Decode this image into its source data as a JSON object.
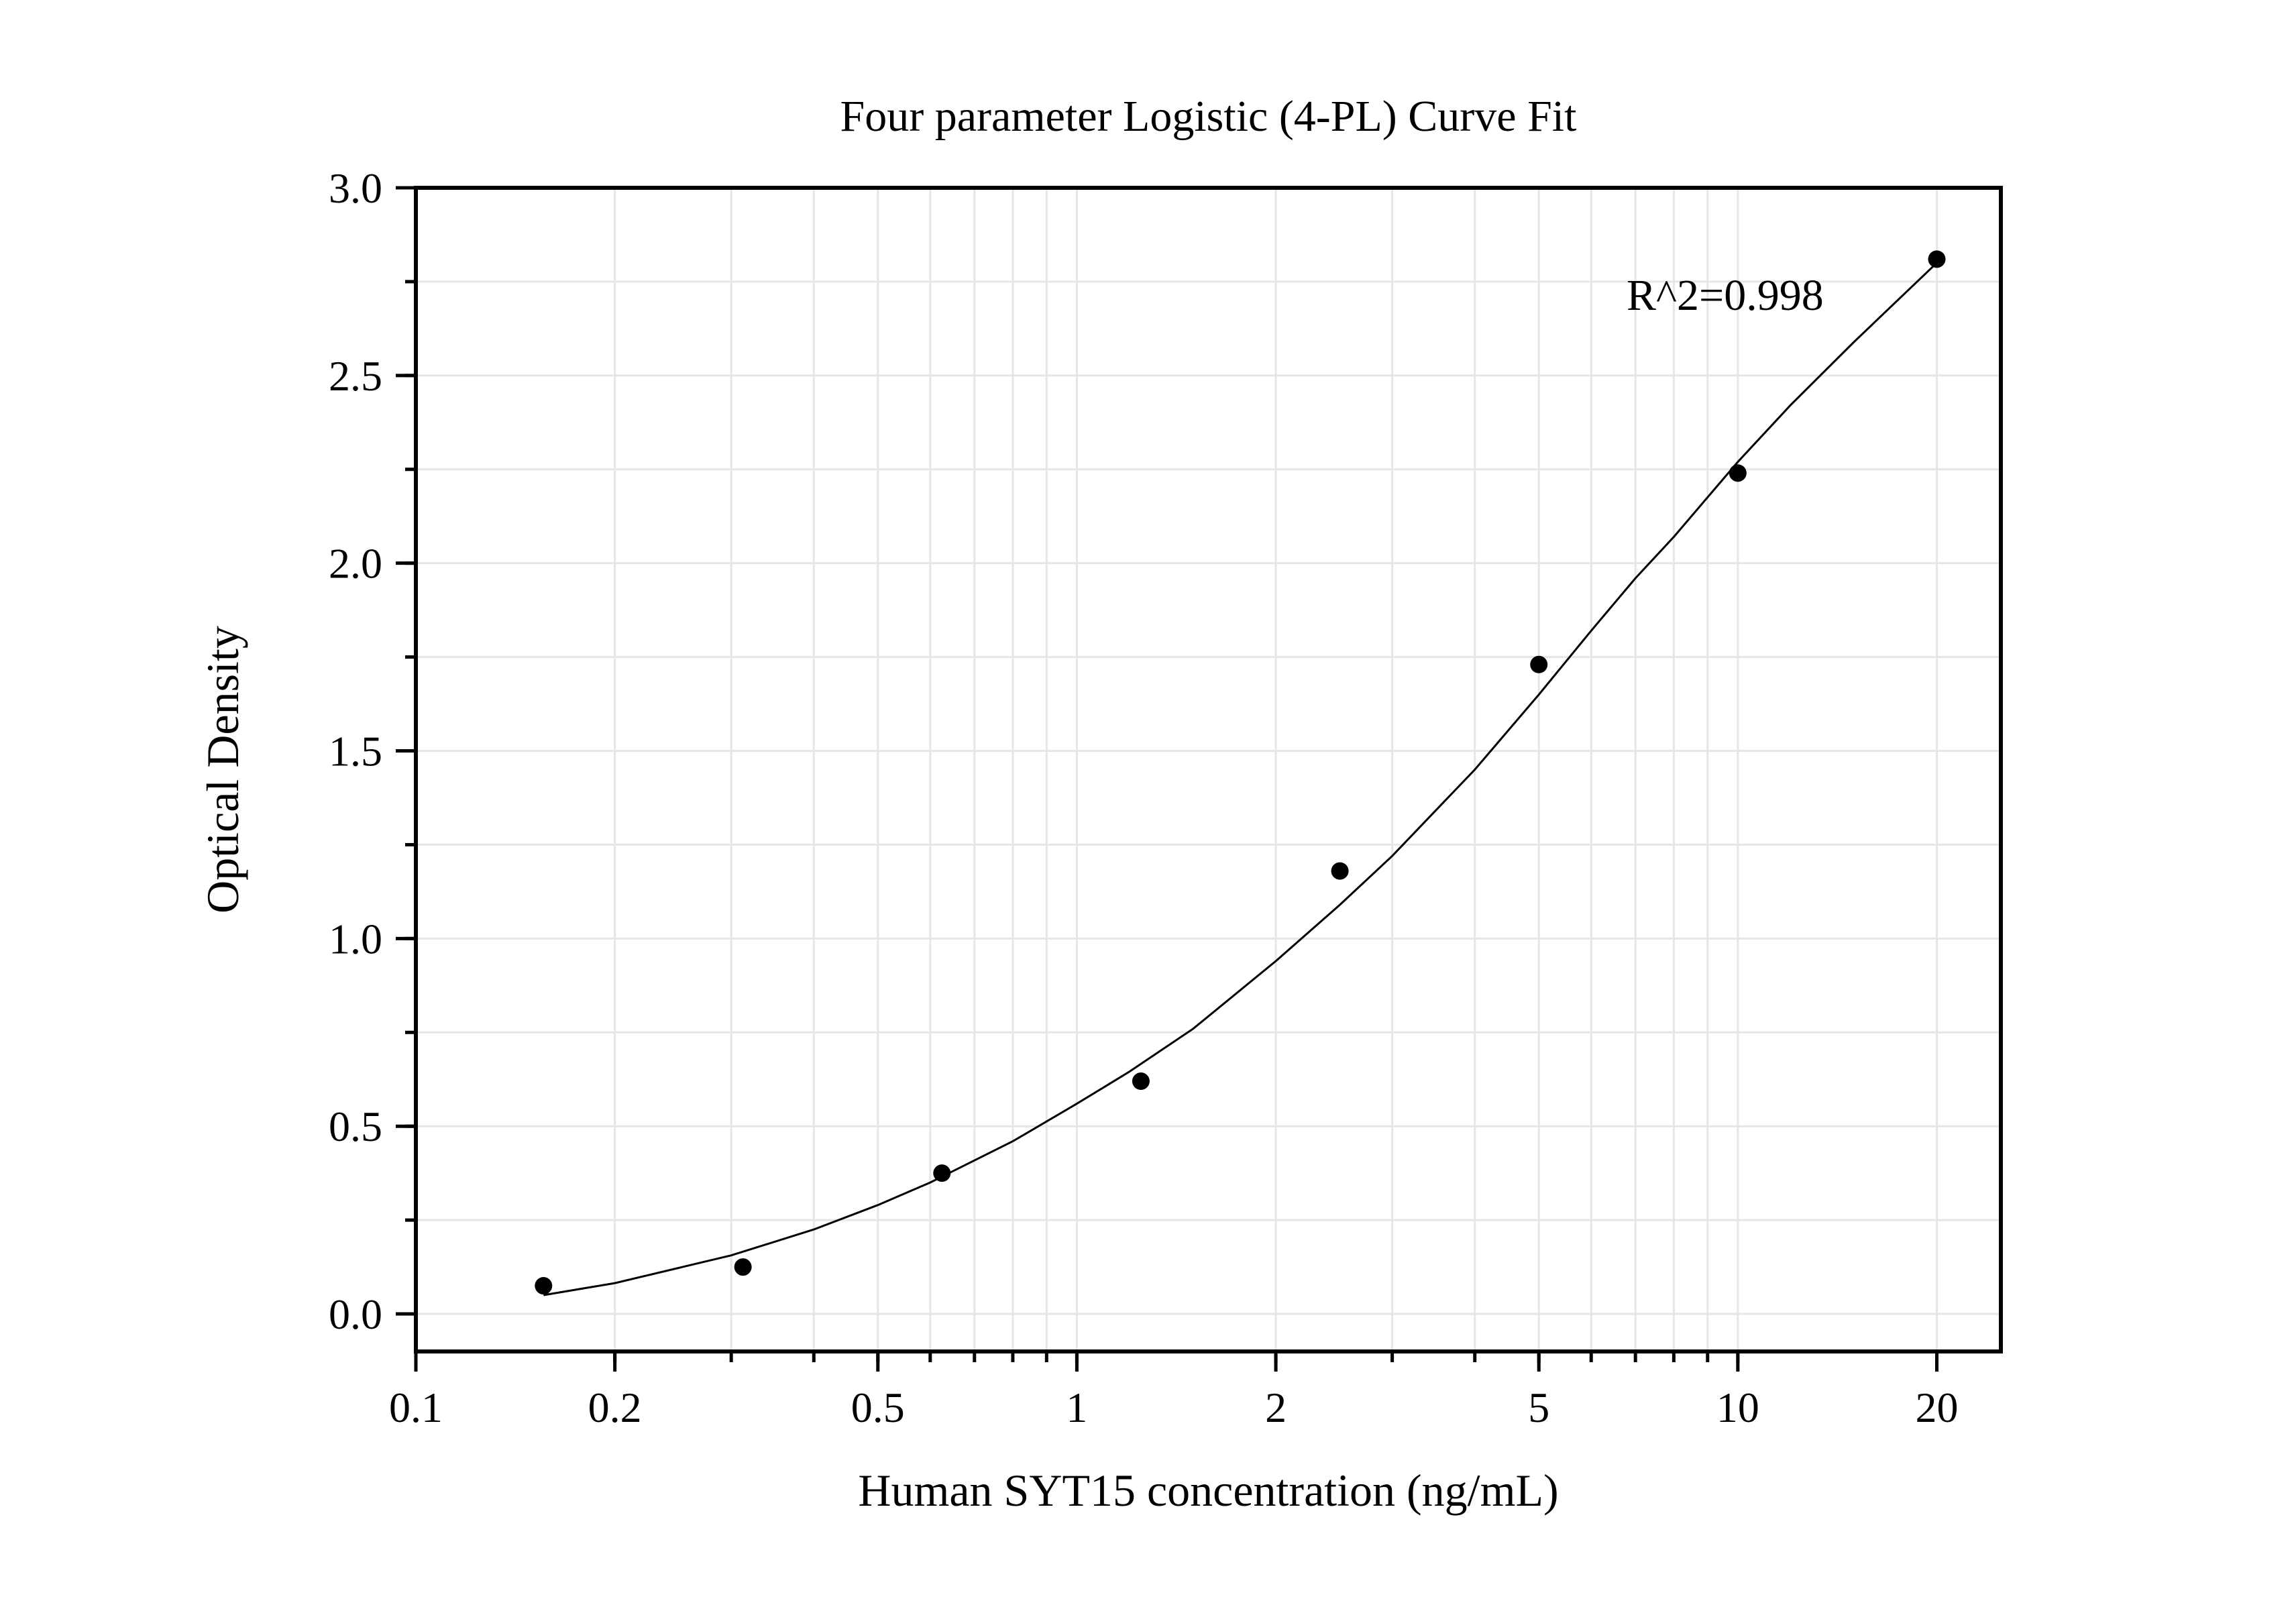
{
  "chart_data": {
    "type": "scatter",
    "title": "Four parameter Logistic (4-PL) Curve Fit",
    "xlabel": "Human SYT15 concentration (ng/mL)",
    "ylabel": "Optical Density",
    "xscale": "log",
    "xlim": [
      0.1,
      25
    ],
    "ylim": [
      -0.1,
      3.0
    ],
    "x_ticks": [
      0.1,
      0.2,
      0.5,
      1,
      2,
      5,
      10,
      20
    ],
    "x_tick_labels": [
      "0.1",
      "0.2",
      "0.5",
      "1",
      "2",
      "5",
      "10",
      "20"
    ],
    "y_ticks": [
      0.0,
      0.5,
      1.0,
      1.5,
      2.0,
      2.5,
      3.0
    ],
    "y_tick_labels": [
      "0.0",
      "0.5",
      "1.0",
      "1.5",
      "2.0",
      "2.5",
      "3.0"
    ],
    "grid": true,
    "series": [
      {
        "x": [
          0.156,
          0.3125,
          0.625,
          1.25,
          2.5,
          5,
          10,
          20
        ],
        "y": [
          0.075,
          0.125,
          0.375,
          0.62,
          1.18,
          1.73,
          2.24,
          2.81
        ]
      }
    ],
    "fit_curve": {
      "type": "4PL",
      "x": [
        0.156,
        0.2,
        0.3,
        0.4,
        0.5,
        0.6,
        0.8,
        1,
        1.2,
        1.5,
        2,
        2.5,
        3,
        4,
        5,
        6,
        7,
        8,
        10,
        12,
        15,
        20
      ],
      "y": [
        0.05,
        0.082,
        0.156,
        0.225,
        0.29,
        0.35,
        0.46,
        0.56,
        0.645,
        0.76,
        0.94,
        1.09,
        1.22,
        1.45,
        1.65,
        1.82,
        1.96,
        2.07,
        2.27,
        2.42,
        2.59,
        2.8
      ]
    },
    "annotations": [
      "R^2=0.998"
    ]
  }
}
